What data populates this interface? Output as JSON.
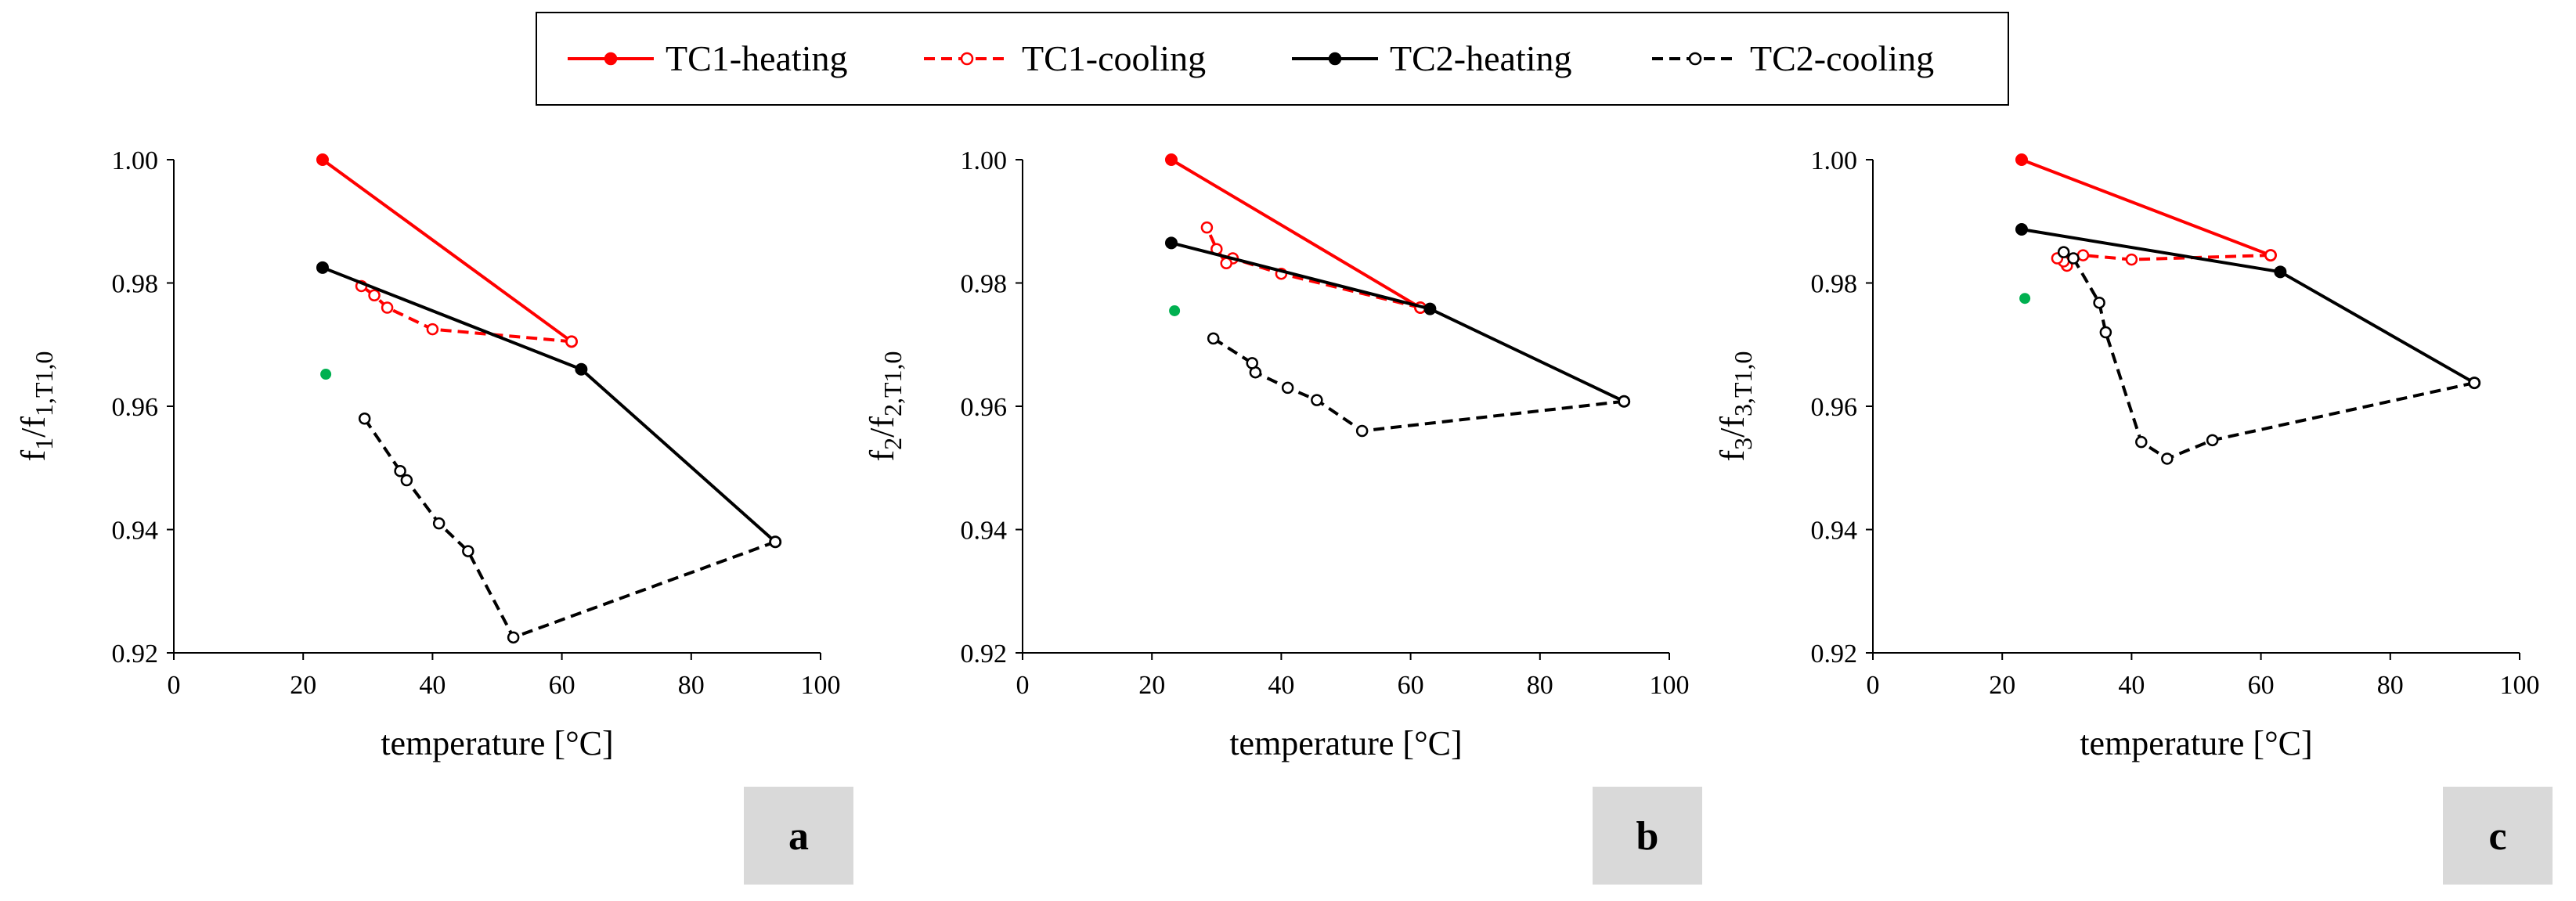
{
  "colors": {
    "tc1": "#ff0000",
    "tc2": "#000000",
    "reference": "#00b050",
    "panel_box": "#d9d9d9"
  },
  "legend": {
    "entries": [
      {
        "name": "TC1-heating",
        "color": "#ff0000",
        "dashed": false,
        "marker": "filled"
      },
      {
        "name": "TC1-cooling",
        "color": "#ff0000",
        "dashed": true,
        "marker": "open"
      },
      {
        "name": "TC2-heating",
        "color": "#000000",
        "dashed": false,
        "marker": "filled"
      },
      {
        "name": "TC2-cooling",
        "color": "#000000",
        "dashed": true,
        "marker": "open"
      }
    ]
  },
  "chart_data": [
    {
      "type": "line",
      "panel_label": "a",
      "xlabel": "temperature [°C]",
      "ylabel_main": "f",
      "ylabel_sub1": "1",
      "ylabel_mid": "/f",
      "ylabel_sub2": "1,T1,0",
      "xlim": [
        0,
        100
      ],
      "ylim": [
        0.92,
        1.0
      ],
      "xticks": [
        "0",
        "20",
        "40",
        "60",
        "80",
        "100"
      ],
      "yticks": [
        "0.92",
        "0.94",
        "0.96",
        "0.98",
        "1.00"
      ],
      "series": [
        {
          "name": "TC1-heating",
          "x": [
            23,
            61.5
          ],
          "y": [
            1.0,
            0.9705
          ]
        },
        {
          "name": "TC1-cooling",
          "x": [
            61.5,
            40,
            33,
            31,
            29
          ],
          "y": [
            0.9705,
            0.9725,
            0.976,
            0.978,
            0.9795
          ]
        },
        {
          "name": "TC2-heating",
          "x": [
            23,
            63,
            93
          ],
          "y": [
            0.9825,
            0.966,
            0.938
          ]
        },
        {
          "name": "TC2-cooling",
          "x": [
            93,
            52.5,
            45.5,
            41,
            36,
            35,
            29.5
          ],
          "y": [
            0.938,
            0.9225,
            0.9365,
            0.941,
            0.948,
            0.9495,
            0.958
          ]
        },
        {
          "name": "reference",
          "x": [
            23.5
          ],
          "y": [
            0.9652
          ]
        }
      ]
    },
    {
      "type": "line",
      "panel_label": "b",
      "xlabel": "temperature [°C]",
      "ylabel_main": "f",
      "ylabel_sub1": "2",
      "ylabel_mid": "/f",
      "ylabel_sub2": "2,T1,0",
      "xlim": [
        0,
        100
      ],
      "ylim": [
        0.92,
        1.0
      ],
      "xticks": [
        "0",
        "20",
        "40",
        "60",
        "80",
        "100"
      ],
      "yticks": [
        "0.92",
        "0.94",
        "0.96",
        "0.98",
        "1.00"
      ],
      "series": [
        {
          "name": "TC1-heating",
          "x": [
            23,
            61.5
          ],
          "y": [
            1.0,
            0.976
          ]
        },
        {
          "name": "TC1-cooling",
          "x": [
            61.5,
            40,
            32.5,
            31.5,
            30,
            28.5
          ],
          "y": [
            0.976,
            0.9815,
            0.984,
            0.9832,
            0.9855,
            0.989
          ]
        },
        {
          "name": "TC2-heating",
          "x": [
            23,
            63,
            93
          ],
          "y": [
            0.9865,
            0.9758,
            0.9608
          ]
        },
        {
          "name": "TC2-cooling",
          "x": [
            93,
            52.5,
            45.5,
            41,
            36,
            35.5,
            29.5
          ],
          "y": [
            0.9608,
            0.956,
            0.961,
            0.963,
            0.9655,
            0.967,
            0.971
          ]
        },
        {
          "name": "reference",
          "x": [
            23.5
          ],
          "y": [
            0.9755
          ]
        }
      ]
    },
    {
      "type": "line",
      "panel_label": "c",
      "xlabel": "temperature [°C]",
      "ylabel_main": "f",
      "ylabel_sub1": "3",
      "ylabel_mid": "/f",
      "ylabel_sub2": "3,T1,0",
      "xlim": [
        0,
        100
      ],
      "ylim": [
        0.92,
        1.0
      ],
      "xticks": [
        "0",
        "20",
        "40",
        "60",
        "80",
        "100"
      ],
      "yticks": [
        "0.92",
        "0.94",
        "0.96",
        "0.98",
        "1.00"
      ],
      "series": [
        {
          "name": "TC1-heating",
          "x": [
            23,
            61.5
          ],
          "y": [
            1.0,
            0.9845
          ]
        },
        {
          "name": "TC1-cooling",
          "x": [
            61.5,
            40,
            32.5,
            30,
            29.5,
            28.5
          ],
          "y": [
            0.9845,
            0.9838,
            0.9845,
            0.9828,
            0.9835,
            0.984
          ]
        },
        {
          "name": "TC2-heating",
          "x": [
            23,
            63,
            93
          ],
          "y": [
            0.9887,
            0.9818,
            0.9638
          ]
        },
        {
          "name": "TC2-cooling",
          "x": [
            93,
            52.5,
            45.5,
            41.5,
            36,
            35,
            31,
            29.5
          ],
          "y": [
            0.9638,
            0.9545,
            0.9515,
            0.9542,
            0.972,
            0.9768,
            0.984,
            0.985
          ]
        },
        {
          "name": "reference",
          "x": [
            23.5
          ],
          "y": [
            0.9775
          ]
        }
      ]
    }
  ]
}
